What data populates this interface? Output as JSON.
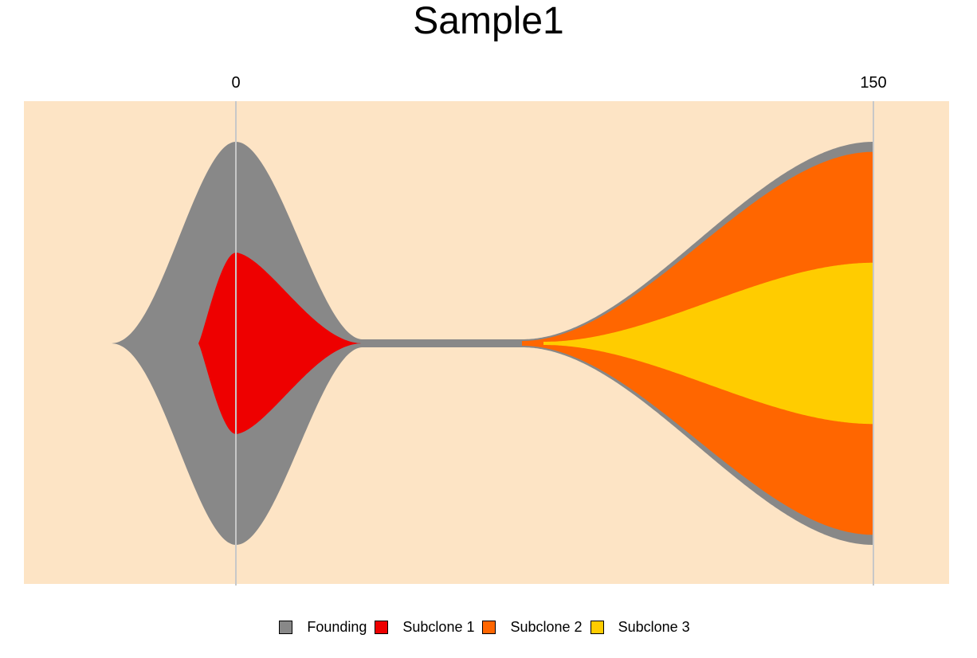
{
  "chart_data": {
    "type": "area",
    "title": "Sample1",
    "x_ticks": [
      0,
      150
    ],
    "timepoints": [
      0,
      150
    ],
    "clones": [
      {
        "name": "Founding",
        "parent": null,
        "fractions": [
          100,
          100
        ]
      },
      {
        "name": "Subclone 1",
        "parent": "Founding",
        "fractions": [
          45,
          0
        ]
      },
      {
        "name": "Subclone 2",
        "parent": "Founding",
        "fractions": [
          0,
          95
        ]
      },
      {
        "name": "Subclone 3",
        "parent": "Subclone 2",
        "fractions": [
          0,
          40
        ]
      }
    ],
    "colors": {
      "background": "#FDE4C5",
      "gridline": "#C8C8C8",
      "Founding": "#888888",
      "Subclone 1": "#EE0000",
      "Subclone 2": "#FF6600",
      "Subclone 3": "#FFCC00"
    },
    "legend": [
      "Founding",
      "Subclone 1",
      "Subclone 2",
      "Subclone 3"
    ],
    "legend_position": "bottom"
  }
}
